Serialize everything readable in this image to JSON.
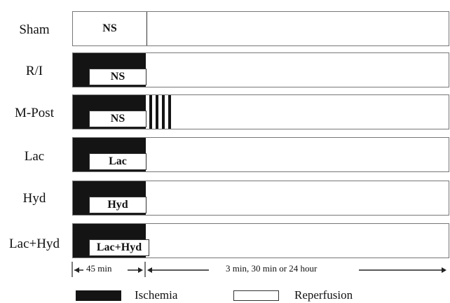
{
  "rows": [
    {
      "label": "Sham",
      "treatment": "NS",
      "ischemia": false,
      "postcond": false
    },
    {
      "label": "R/I",
      "treatment": "NS",
      "ischemia": true,
      "postcond": false
    },
    {
      "label": "M-Post",
      "treatment": "NS",
      "ischemia": true,
      "postcond": true
    },
    {
      "label": "Lac",
      "treatment": "Lac",
      "ischemia": true,
      "postcond": false
    },
    {
      "label": "Hyd",
      "treatment": "Hyd",
      "ischemia": true,
      "postcond": false
    },
    {
      "label": "Lac+Hyd",
      "treatment": "Lac+Hyd",
      "ischemia": true,
      "postcond": false
    }
  ],
  "timeline": {
    "phase1": "45 min",
    "phase2": "3 min, 30 min or 24 hour"
  },
  "legend": {
    "ischemia": "Ischemia",
    "reperfusion": "Reperfusion",
    "ischemia_color": "#141414",
    "reperfusion_color": "#ffffff"
  }
}
